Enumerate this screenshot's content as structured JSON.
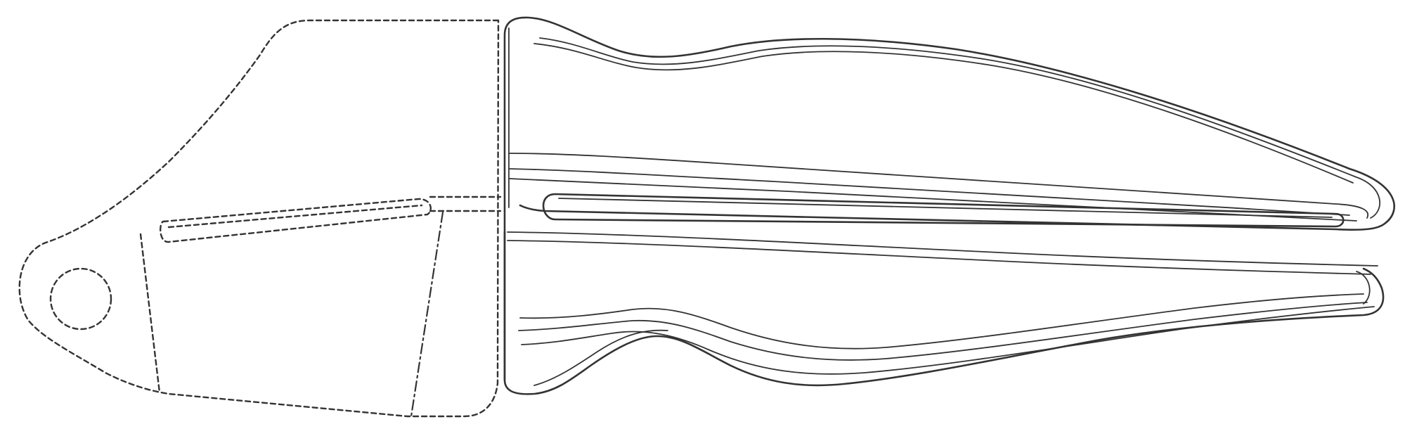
{
  "figure": {
    "subject": "handheld-press-tool-design-drawing",
    "line_color": "#333333",
    "background": "#ffffff"
  }
}
